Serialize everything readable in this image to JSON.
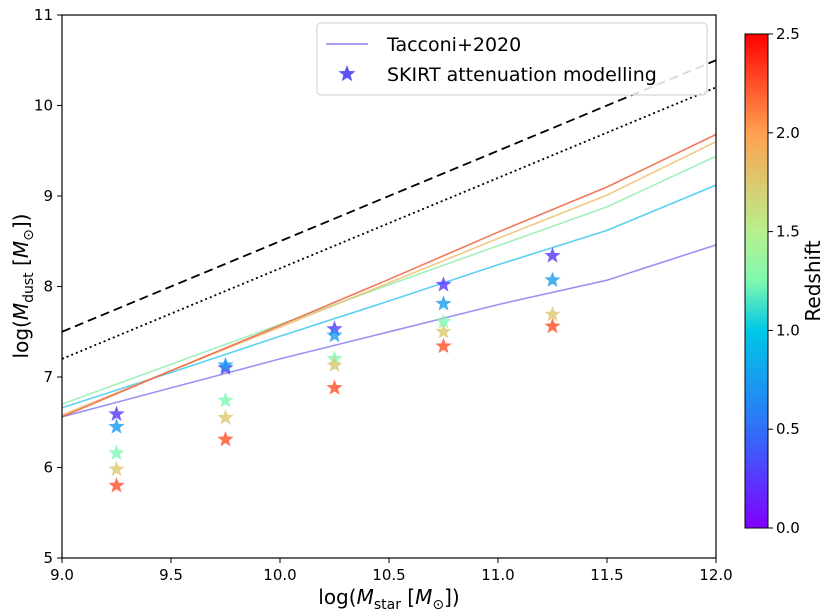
{
  "chart_data": {
    "type": "scatter",
    "xlabel": "log(M_star [M_⊙])",
    "ylabel": "log(M_dust [M_⊙])",
    "xlim": [
      9.0,
      12.0
    ],
    "ylim": [
      5,
      11
    ],
    "xticks": [
      "9.0",
      "9.5",
      "10.0",
      "10.5",
      "11.0",
      "11.5",
      "12.0"
    ],
    "yticks": [
      "5",
      "6",
      "7",
      "8",
      "9",
      "10",
      "11"
    ],
    "colorbar": {
      "label": "Redshift",
      "range": [
        0.0,
        2.5
      ],
      "ticks": [
        "0.0",
        "0.5",
        "1.0",
        "1.5",
        "2.0",
        "2.5"
      ]
    },
    "legend": {
      "position": "top-right",
      "entries": [
        "Tacconi+2020",
        "SKIRT attenuation modelling"
      ]
    },
    "reference_lines": [
      {
        "style": "dashed",
        "color": "#000000",
        "points": [
          [
            9.0,
            7.5
          ],
          [
            12.0,
            10.5
          ]
        ]
      },
      {
        "style": "dotted",
        "color": "#000000",
        "points": [
          [
            9.0,
            7.2
          ],
          [
            12.0,
            10.2
          ]
        ]
      }
    ],
    "tacconi_series": [
      {
        "z": 0.25,
        "color": "#8a80f0",
        "points": [
          [
            9.0,
            6.56
          ],
          [
            9.5,
            6.88
          ],
          [
            10.0,
            7.2
          ],
          [
            10.5,
            7.5
          ],
          [
            11.0,
            7.8
          ],
          [
            11.5,
            8.07
          ],
          [
            12.0,
            8.46
          ]
        ]
      },
      {
        "z": 0.75,
        "color": "#40c8f0",
        "points": [
          [
            9.0,
            6.66
          ],
          [
            9.5,
            7.05
          ],
          [
            10.0,
            7.45
          ],
          [
            10.5,
            7.84
          ],
          [
            11.0,
            8.24
          ],
          [
            11.5,
            8.62
          ],
          [
            12.0,
            9.12
          ]
        ]
      },
      {
        "z": 1.25,
        "color": "#90f0b0",
        "points": [
          [
            9.0,
            6.7
          ],
          [
            9.5,
            7.14
          ],
          [
            10.0,
            7.58
          ],
          [
            10.5,
            8.02
          ],
          [
            11.0,
            8.45
          ],
          [
            11.5,
            8.88
          ],
          [
            12.0,
            9.44
          ]
        ]
      },
      {
        "z": 1.75,
        "color": "#f0c070",
        "points": [
          [
            9.0,
            6.58
          ],
          [
            9.5,
            7.07
          ],
          [
            10.0,
            7.55
          ],
          [
            10.5,
            8.04
          ],
          [
            11.0,
            8.53
          ],
          [
            11.5,
            9.01
          ],
          [
            12.0,
            9.6
          ]
        ]
      },
      {
        "z": 2.25,
        "color": "#f06040",
        "points": [
          [
            9.0,
            6.56
          ],
          [
            9.5,
            7.07
          ],
          [
            10.0,
            7.57
          ],
          [
            10.5,
            8.08
          ],
          [
            11.0,
            8.6
          ],
          [
            11.5,
            9.1
          ],
          [
            12.0,
            9.68
          ]
        ]
      }
    ],
    "skirt_points": [
      {
        "x": 9.25,
        "y": 6.59,
        "z": 0.25
      },
      {
        "x": 9.25,
        "y": 6.45,
        "z": 0.75
      },
      {
        "x": 9.25,
        "y": 6.16,
        "z": 1.25
      },
      {
        "x": 9.25,
        "y": 5.98,
        "z": 1.75
      },
      {
        "x": 9.25,
        "y": 5.8,
        "z": 2.25
      },
      {
        "x": 9.75,
        "y": 7.1,
        "z": 0.25
      },
      {
        "x": 9.75,
        "y": 7.13,
        "z": 0.75
      },
      {
        "x": 9.75,
        "y": 6.74,
        "z": 1.25
      },
      {
        "x": 9.75,
        "y": 6.55,
        "z": 1.75
      },
      {
        "x": 9.75,
        "y": 6.31,
        "z": 2.25
      },
      {
        "x": 10.25,
        "y": 7.53,
        "z": 0.25
      },
      {
        "x": 10.25,
        "y": 7.46,
        "z": 0.75
      },
      {
        "x": 10.25,
        "y": 7.2,
        "z": 1.25
      },
      {
        "x": 10.25,
        "y": 7.13,
        "z": 1.75
      },
      {
        "x": 10.25,
        "y": 6.88,
        "z": 2.25
      },
      {
        "x": 10.75,
        "y": 8.02,
        "z": 0.25
      },
      {
        "x": 10.75,
        "y": 7.81,
        "z": 0.75
      },
      {
        "x": 10.75,
        "y": 7.61,
        "z": 1.25
      },
      {
        "x": 10.75,
        "y": 7.5,
        "z": 1.75
      },
      {
        "x": 10.75,
        "y": 7.34,
        "z": 2.25
      },
      {
        "x": 11.25,
        "y": 8.34,
        "z": 0.25
      },
      {
        "x": 11.25,
        "y": 8.07,
        "z": 0.75
      },
      {
        "x": 11.25,
        "y": 7.69,
        "z": 1.75
      },
      {
        "x": 11.25,
        "y": 7.56,
        "z": 2.25
      }
    ]
  }
}
